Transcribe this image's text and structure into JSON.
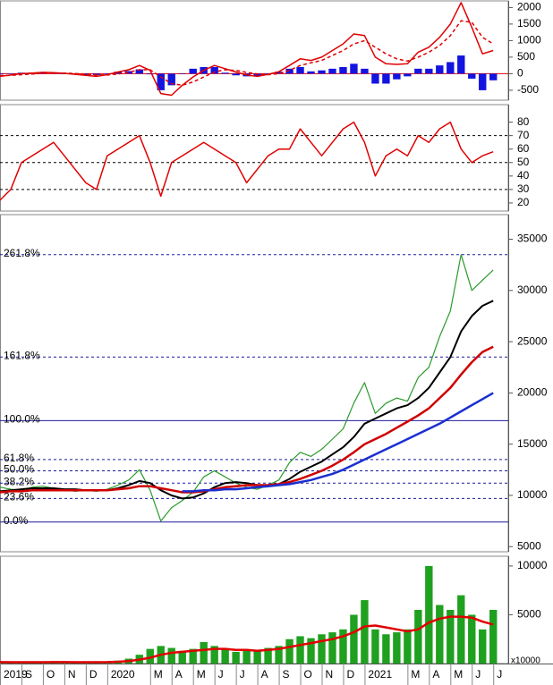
{
  "chart_data": [
    {
      "type": "combo",
      "xlim": [
        0,
        23.7
      ],
      "ylim": [
        -800,
        2200
      ],
      "yticks": [
        -500,
        0,
        500,
        1000,
        1500,
        2000
      ],
      "zero_line": true,
      "x": [
        0,
        0.5,
        1,
        1.5,
        2,
        2.5,
        3,
        3.5,
        4,
        4.5,
        5,
        5.5,
        6,
        6.5,
        7,
        7.5,
        8,
        8.5,
        9,
        9.5,
        10,
        10.5,
        11,
        11.5,
        12,
        12.5,
        13,
        13.5,
        14,
        14.5,
        15,
        15.5,
        16,
        16.5,
        17,
        17.5,
        18,
        18.5,
        19,
        19.5,
        20,
        20.5,
        21,
        21.5,
        22,
        22.5,
        23
      ],
      "series": [
        {
          "kind": "bar",
          "color": "#1414e0",
          "values": [
            -20,
            10,
            30,
            30,
            30,
            10,
            -10,
            -25,
            -35,
            -40,
            10,
            60,
            80,
            130,
            -20,
            -500,
            -350,
            0,
            150,
            200,
            200,
            30,
            -50,
            -80,
            -70,
            10,
            60,
            150,
            200,
            70,
            100,
            150,
            200,
            300,
            150,
            -300,
            -300,
            -170,
            -80,
            150,
            150,
            250,
            350,
            550,
            -150,
            -500,
            -200
          ]
        },
        {
          "kind": "line",
          "color": "#e00000",
          "values": [
            -80,
            -40,
            0,
            20,
            40,
            30,
            10,
            -20,
            -50,
            -80,
            -30,
            50,
            120,
            250,
            100,
            -600,
            -650,
            -350,
            -100,
            100,
            250,
            150,
            50,
            -40,
            -80,
            -20,
            60,
            250,
            450,
            400,
            500,
            700,
            900,
            1200,
            1150,
            500,
            300,
            280,
            300,
            650,
            800,
            1100,
            1500,
            2150,
            1400,
            600,
            700
          ]
        },
        {
          "kind": "line",
          "color": "#e00000",
          "dash": true,
          "values": [
            -60,
            -50,
            -30,
            -10,
            10,
            20,
            20,
            5,
            -15,
            -40,
            -40,
            -10,
            40,
            120,
            120,
            -100,
            -300,
            -350,
            -250,
            -100,
            50,
            120,
            100,
            40,
            -10,
            -30,
            0,
            100,
            250,
            330,
            400,
            550,
            700,
            900,
            1000,
            800,
            600,
            450,
            380,
            500,
            650,
            850,
            1150,
            1600,
            1550,
            1100,
            900
          ]
        }
      ]
    },
    {
      "type": "line",
      "xlim": [
        0,
        23.7
      ],
      "ylim": [
        14,
        93
      ],
      "yticks": [
        20,
        30,
        40,
        50,
        60,
        70,
        80
      ],
      "levels": [
        30,
        50,
        70
      ],
      "x": [
        0,
        0.5,
        1,
        1.5,
        2,
        2.5,
        3,
        3.5,
        4,
        4.5,
        5,
        5.5,
        6,
        6.5,
        7,
        7.5,
        8,
        8.5,
        9,
        9.5,
        10,
        10.5,
        11,
        11.5,
        12,
        12.5,
        13,
        13.5,
        14,
        14.5,
        15,
        15.5,
        16,
        16.5,
        17,
        17.5,
        18,
        18.5,
        19,
        19.5,
        20,
        20.5,
        21,
        21.5,
        22,
        22.5,
        23
      ],
      "series": [
        {
          "kind": "line",
          "color": "#e00000",
          "values": [
            22,
            30,
            50,
            55,
            60,
            65,
            55,
            45,
            35,
            30,
            55,
            60,
            65,
            70,
            50,
            25,
            50,
            55,
            60,
            65,
            60,
            55,
            50,
            35,
            45,
            55,
            60,
            60,
            75,
            65,
            55,
            65,
            75,
            80,
            65,
            40,
            55,
            60,
            55,
            70,
            65,
            75,
            80,
            60,
            50,
            55,
            58
          ]
        }
      ]
    },
    {
      "type": "line",
      "xlim": [
        0,
        23.7
      ],
      "ylim": [
        4500,
        37400
      ],
      "yticks": [
        5000,
        10000,
        15000,
        20000,
        25000,
        30000,
        35000
      ],
      "levels": [
        {
          "value": 33500,
          "label": "261.8%"
        },
        {
          "value": 23500,
          "label": "161.8%"
        },
        {
          "value": 17300,
          "label": "100.0%",
          "line": "solid"
        },
        {
          "value": 13500,
          "label": "61.8%"
        },
        {
          "value": 12400,
          "label": "50.0%"
        },
        {
          "value": 11200,
          "label": "38.2%"
        },
        {
          "value": 9700,
          "label": "23.6%"
        },
        {
          "value": 7400,
          "label": "0.0%",
          "line": "solid"
        }
      ],
      "x": [
        0,
        0.5,
        1,
        1.5,
        2,
        2.5,
        3,
        3.5,
        4,
        4.5,
        5,
        5.5,
        6,
        6.5,
        7,
        7.5,
        8,
        8.5,
        9,
        9.5,
        10,
        10.5,
        11,
        11.5,
        12,
        12.5,
        13,
        13.5,
        14,
        14.5,
        15,
        15.5,
        16,
        16.5,
        17,
        17.5,
        18,
        18.5,
        19,
        19.5,
        20,
        20.5,
        21,
        21.5,
        22,
        22.5,
        23
      ],
      "series": [
        {
          "kind": "line",
          "color": "#2a9a2a",
          "width": 1.2,
          "values": [
            10800,
            10600,
            10500,
            10800,
            10900,
            10700,
            10600,
            10400,
            10500,
            10400,
            10600,
            11000,
            11500,
            12500,
            10500,
            7500,
            8800,
            9500,
            10300,
            11800,
            12400,
            11800,
            11200,
            10800,
            10600,
            11000,
            11500,
            13200,
            14200,
            13800,
            14500,
            15500,
            16500,
            19000,
            21000,
            18000,
            19000,
            19500,
            19200,
            21500,
            22500,
            25500,
            28000,
            33500,
            30000,
            31000,
            32000
          ]
        },
        {
          "kind": "line",
          "color": "#000000",
          "width": 2,
          "values": [
            10400,
            10500,
            10600,
            10700,
            10700,
            10700,
            10600,
            10600,
            10500,
            10500,
            10500,
            10700,
            11000,
            11400,
            11200,
            10500,
            10000,
            9700,
            9800,
            10200,
            10800,
            11200,
            11300,
            11200,
            11000,
            11000,
            11100,
            11600,
            12300,
            12800,
            13300,
            14000,
            14700,
            15700,
            17000,
            17500,
            18000,
            18500,
            18800,
            19500,
            20500,
            22000,
            23500,
            26000,
            27500,
            28500,
            29000
          ]
        },
        {
          "kind": "line",
          "color": "#d00000",
          "width": 2.5,
          "values": [
            10300,
            10400,
            10400,
            10500,
            10500,
            10500,
            10500,
            10500,
            10500,
            10500,
            10500,
            10600,
            10700,
            10900,
            10900,
            10700,
            10500,
            10300,
            10300,
            10400,
            10600,
            10800,
            10900,
            11000,
            11000,
            11000,
            11100,
            11300,
            11600,
            12000,
            12400,
            12900,
            13500,
            14200,
            15000,
            15500,
            16000,
            16600,
            17200,
            17800,
            18500,
            19500,
            20500,
            21800,
            23000,
            24000,
            24500
          ]
        },
        {
          "kind": "line",
          "color": "#1a2fd0",
          "width": 2.5,
          "values": [
            null,
            null,
            null,
            null,
            null,
            null,
            null,
            null,
            null,
            null,
            null,
            null,
            null,
            null,
            null,
            null,
            null,
            10400,
            10400,
            10500,
            10500,
            10600,
            10600,
            10700,
            10800,
            10900,
            11000,
            11100,
            11300,
            11500,
            11800,
            12100,
            12500,
            13000,
            13500,
            14000,
            14500,
            15000,
            15500,
            16000,
            16500,
            17000,
            17600,
            18200,
            18800,
            19400,
            20000
          ]
        }
      ]
    },
    {
      "type": "combo",
      "xlim": [
        0,
        23.7
      ],
      "ylim": [
        0,
        11000
      ],
      "yticks": [
        5000,
        10000
      ],
      "unit_label": "x10000",
      "xticks": [
        {
          "value": 0,
          "label": "2019"
        },
        {
          "value": 1,
          "label": "S"
        },
        {
          "value": 2,
          "label": "O"
        },
        {
          "value": 3,
          "label": "N"
        },
        {
          "value": 4,
          "label": "D"
        },
        {
          "value": 5,
          "label": "2020"
        },
        {
          "value": 7,
          "label": "M"
        },
        {
          "value": 8,
          "label": "A"
        },
        {
          "value": 9,
          "label": "M"
        },
        {
          "value": 10,
          "label": "J"
        },
        {
          "value": 11,
          "label": "J"
        },
        {
          "value": 12,
          "label": "A"
        },
        {
          "value": 13,
          "label": "S"
        },
        {
          "value": 14,
          "label": "O"
        },
        {
          "value": 15,
          "label": "N"
        },
        {
          "value": 16,
          "label": "D"
        },
        {
          "value": 17,
          "label": "2021"
        },
        {
          "value": 19,
          "label": "M"
        },
        {
          "value": 20,
          "label": "A"
        },
        {
          "value": 21,
          "label": "M"
        },
        {
          "value": 22,
          "label": "J"
        },
        {
          "value": 23,
          "label": "J"
        }
      ],
      "x": [
        0,
        0.5,
        1,
        1.5,
        2,
        2.5,
        3,
        3.5,
        4,
        4.5,
        5,
        5.5,
        6,
        6.5,
        7,
        7.5,
        8,
        8.5,
        9,
        9.5,
        10,
        10.5,
        11,
        11.5,
        12,
        12.5,
        13,
        13.5,
        14,
        14.5,
        15,
        15.5,
        16,
        16.5,
        17,
        17.5,
        18,
        18.5,
        19,
        19.5,
        20,
        20.5,
        21,
        21.5,
        22,
        22.5,
        23
      ],
      "series": [
        {
          "kind": "bar",
          "color": "#1fa01f",
          "values": [
            150,
            120,
            130,
            150,
            140,
            160,
            130,
            120,
            140,
            150,
            200,
            300,
            500,
            900,
            1500,
            1800,
            1600,
            1300,
            1500,
            2200,
            1800,
            1500,
            1200,
            1300,
            1400,
            1600,
            1800,
            2500,
            2800,
            2600,
            3000,
            3200,
            3500,
            5000,
            6500,
            3500,
            3000,
            3200,
            3500,
            5500,
            10000,
            6000,
            5500,
            7000,
            5000,
            3500,
            5500
          ]
        },
        {
          "kind": "line",
          "color": "#e00000",
          "width": 2.5,
          "values": [
            150,
            140,
            140,
            140,
            140,
            145,
            145,
            140,
            135,
            140,
            150,
            180,
            250,
            400,
            600,
            900,
            1100,
            1200,
            1300,
            1400,
            1500,
            1500,
            1400,
            1400,
            1300,
            1400,
            1500,
            1700,
            1900,
            2100,
            2300,
            2500,
            2800,
            3200,
            3800,
            3900,
            3700,
            3500,
            3300,
            3500,
            4200,
            4600,
            4800,
            4800,
            4700,
            4300,
            4000
          ]
        }
      ]
    }
  ]
}
